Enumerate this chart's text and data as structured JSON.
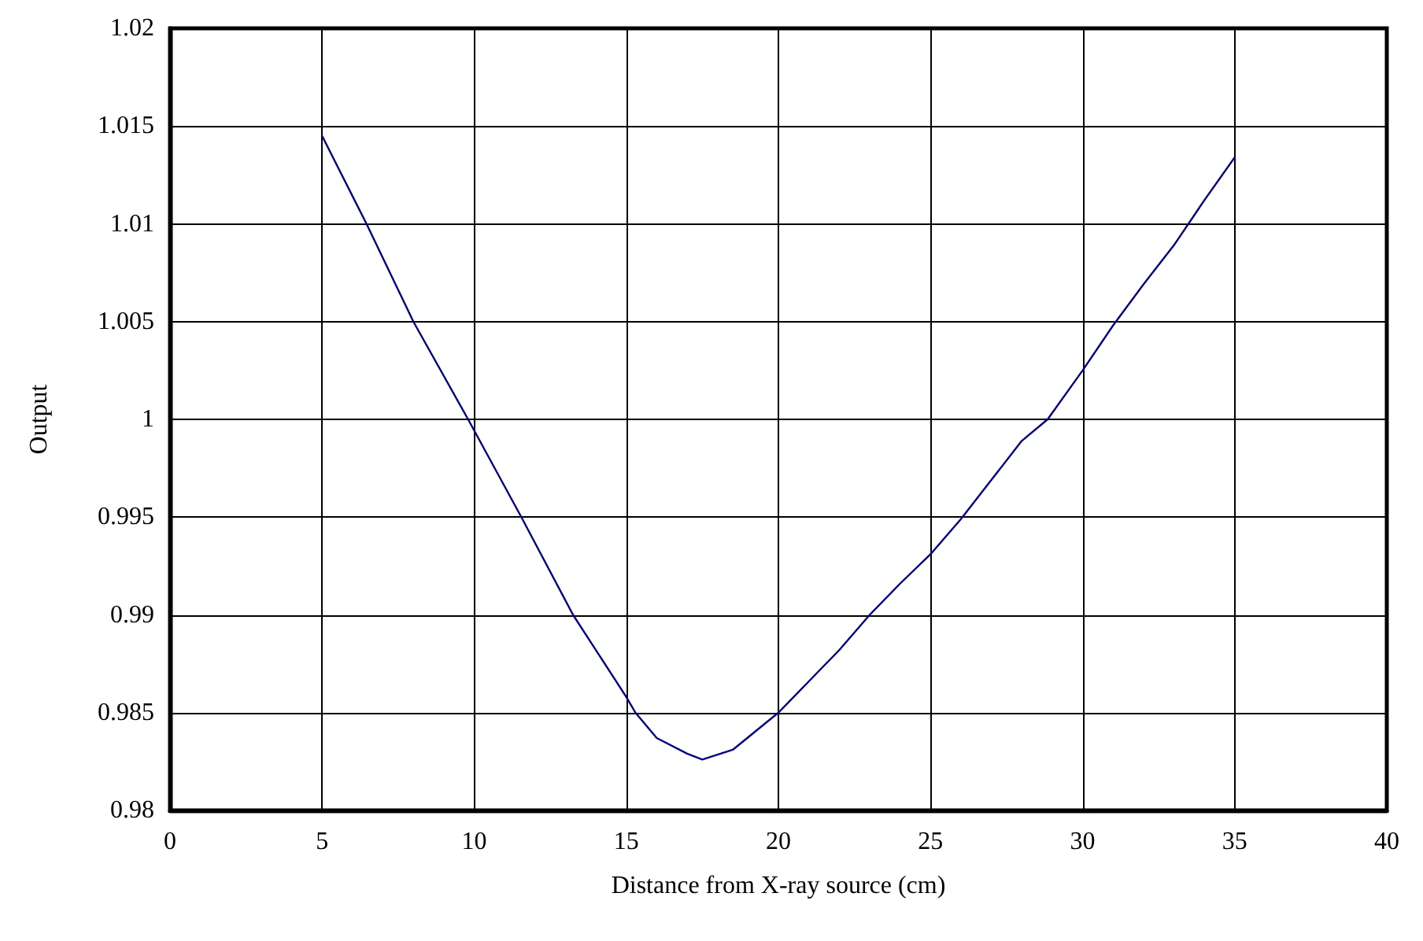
{
  "chart_data": {
    "type": "line",
    "xlabel": "Distance from X-ray source (cm)",
    "ylabel": "Output",
    "x": [
      5,
      6.46,
      8,
      9.8,
      11.55,
      13.25,
      15,
      15.3,
      16,
      17,
      17.5,
      18.5,
      20,
      21,
      22,
      23,
      24,
      25,
      26,
      27,
      28,
      28.85,
      30,
      31,
      32,
      33,
      34,
      35
    ],
    "series": [
      {
        "color": "#000080",
        "values": [
          1.0145,
          1.01,
          1.005,
          1.0,
          0.995,
          0.99,
          0.9858,
          0.985,
          0.9837,
          0.9829,
          0.9826,
          0.9831,
          0.985,
          0.9866,
          0.9882,
          0.99,
          0.9916,
          0.9931,
          0.9949,
          0.9969,
          0.9989,
          1.0,
          1.0025,
          1.0048,
          1.0069,
          1.0089,
          1.0112,
          1.0134
        ]
      }
    ],
    "xlim": [
      0,
      40
    ],
    "xticks": [
      0,
      5,
      10,
      15,
      20,
      25,
      30,
      35,
      40
    ],
    "ylim": [
      0.98,
      1.02
    ],
    "yticks": [
      0.98,
      0.985,
      0.99,
      0.995,
      1,
      1.005,
      1.01,
      1.015,
      1.02
    ],
    "grid": true,
    "marker": "none",
    "line_style": "solid"
  }
}
